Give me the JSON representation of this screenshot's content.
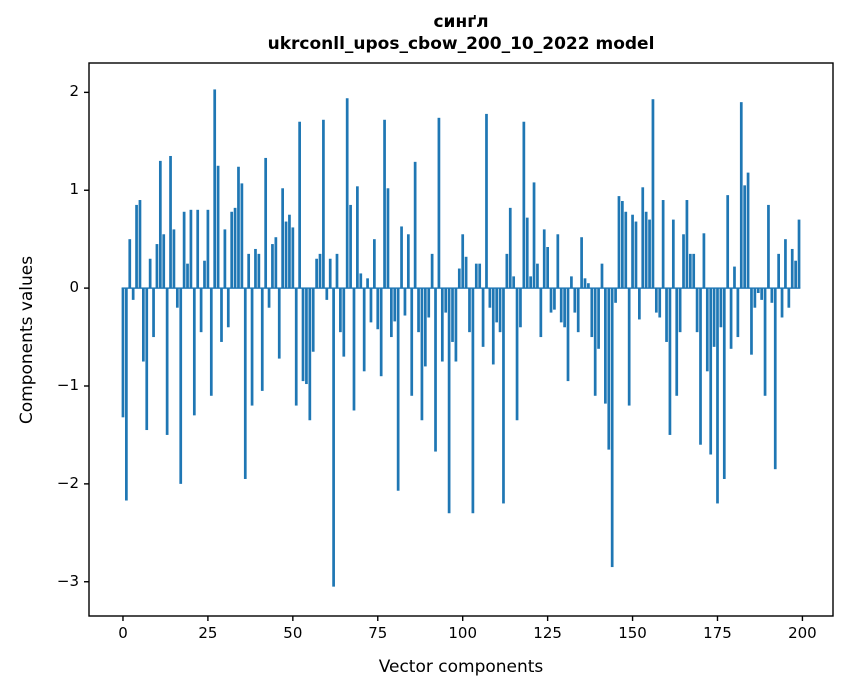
{
  "figure": {
    "title_line1": "синґл",
    "title_line2": "ukrconll_upos_cbow_200_10_2022 model",
    "xlabel": "Vector components",
    "ylabel": "Components values"
  },
  "chart_data": {
    "type": "bar",
    "title": "синґл\nukrconll_upos_cbow_200_10_2022 model",
    "xlabel": "Vector components",
    "ylabel": "Components values",
    "bar_color": "#1f77b4",
    "axis_color": "#000000",
    "background_color": "#ffffff",
    "grid": false,
    "legend": null,
    "x_is_index": true,
    "n_components": 200,
    "xlim": [
      -10,
      209
    ],
    "ylim": [
      -3.35,
      2.3
    ],
    "x_ticks": [
      0,
      25,
      50,
      75,
      100,
      125,
      150,
      175,
      200
    ],
    "y_ticks": [
      -3,
      -2,
      -1,
      0,
      1,
      2
    ],
    "values": [
      -1.32,
      -2.17,
      0.5,
      -0.12,
      0.85,
      0.9,
      -0.75,
      -1.45,
      0.3,
      -0.5,
      0.45,
      1.3,
      0.55,
      -1.5,
      1.35,
      0.6,
      -0.2,
      -2.0,
      0.78,
      0.25,
      0.8,
      -1.3,
      0.8,
      -0.45,
      0.28,
      0.8,
      -1.1,
      2.03,
      1.25,
      -0.55,
      0.6,
      -0.4,
      0.78,
      0.82,
      1.24,
      1.07,
      -1.95,
      0.35,
      -1.2,
      0.4,
      0.35,
      -1.05,
      1.33,
      -0.2,
      0.45,
      0.52,
      -0.72,
      1.02,
      0.68,
      0.75,
      0.62,
      -1.2,
      1.7,
      -0.95,
      -0.98,
      -1.35,
      -0.65,
      0.3,
      0.35,
      1.72,
      -0.12,
      0.3,
      -3.05,
      0.35,
      -0.45,
      -0.7,
      1.94,
      0.85,
      -1.25,
      1.04,
      0.15,
      -0.85,
      0.1,
      -0.35,
      0.5,
      -0.42,
      -0.9,
      1.72,
      1.02,
      -0.5,
      -0.34,
      -2.07,
      0.63,
      -0.28,
      0.55,
      -1.1,
      1.29,
      -0.45,
      -1.35,
      -0.8,
      -0.3,
      0.35,
      -1.67,
      1.74,
      -0.75,
      -0.25,
      -2.3,
      -0.55,
      -0.75,
      0.2,
      0.55,
      0.32,
      -0.45,
      -2.3,
      0.25,
      0.25,
      -0.6,
      1.78,
      -0.2,
      -0.78,
      -0.35,
      -0.45,
      -2.2,
      0.35,
      0.82,
      0.12,
      -1.35,
      -0.4,
      1.7,
      0.72,
      0.12,
      1.08,
      0.25,
      -0.5,
      0.6,
      0.42,
      -0.25,
      -0.22,
      0.55,
      -0.35,
      -0.4,
      -0.95,
      0.12,
      -0.25,
      -0.45,
      0.52,
      0.1,
      0.05,
      -0.5,
      -1.1,
      -0.62,
      0.25,
      -1.18,
      -1.65,
      -2.85,
      -0.15,
      0.94,
      0.89,
      0.78,
      -1.2,
      0.75,
      0.68,
      -0.32,
      1.03,
      0.78,
      0.7,
      1.93,
      -0.25,
      -0.3,
      0.9,
      -0.55,
      -1.5,
      0.7,
      -1.1,
      -0.45,
      0.55,
      0.9,
      0.35,
      0.35,
      -0.45,
      -1.6,
      0.56,
      -0.85,
      -1.7,
      -0.6,
      -2.2,
      -0.4,
      -1.95,
      0.95,
      -0.62,
      0.22,
      -0.5,
      1.9,
      1.05,
      1.18,
      -0.68,
      -0.2,
      -0.05,
      -0.12,
      -1.1,
      0.85,
      -0.15,
      -1.85,
      0.35,
      -0.3,
      0.5,
      -0.2,
      0.4,
      0.28,
      0.7
    ]
  }
}
